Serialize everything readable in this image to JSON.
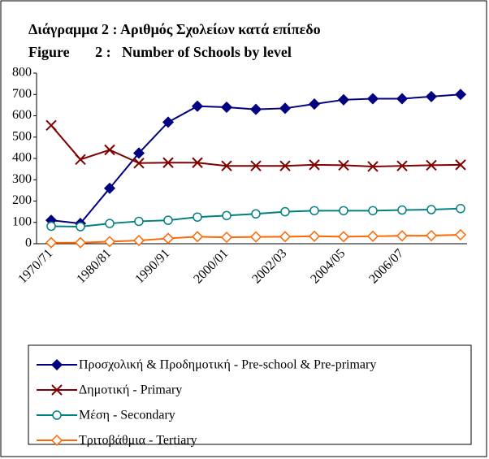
{
  "chart_data": {
    "type": "line",
    "title": "Διάγραμμα 2 :  Αριθμός Σχολείων κατά επίπεδο",
    "subtitle": "Figure       2 :   Number of Schools by level",
    "categories": [
      "1970/71",
      null,
      "1980/81",
      null,
      "1990/91",
      null,
      "2000/01",
      null,
      "2002/03",
      null,
      "2004/05",
      null,
      "2006/07",
      null,
      null
    ],
    "series": [
      {
        "name": "Προσχολική & Προδημοτική - Pre-school & Pre-primary",
        "color": "#000080",
        "marker": "diamond-filled",
        "values": [
          110,
          95,
          260,
          425,
          570,
          645,
          640,
          630,
          635,
          655,
          675,
          680,
          680,
          690,
          700
        ]
      },
      {
        "name": "Δημοτική - Primary",
        "color": "#800000",
        "marker": "x",
        "values": [
          555,
          395,
          440,
          378,
          380,
          380,
          365,
          365,
          365,
          370,
          368,
          362,
          365,
          368,
          370
        ]
      },
      {
        "name": "Μέση - Secondary",
        "color": "#008080",
        "marker": "circle-open",
        "values": [
          82,
          80,
          95,
          105,
          110,
          125,
          132,
          140,
          150,
          155,
          155,
          155,
          158,
          160,
          165
        ]
      },
      {
        "name": "Τριτοβάθμια - Tertiary",
        "color": "#ff6600",
        "marker": "diamond-open",
        "values": [
          5,
          5,
          10,
          15,
          25,
          33,
          30,
          32,
          33,
          35,
          33,
          35,
          37,
          38,
          42
        ]
      }
    ],
    "ylim": [
      0,
      800
    ],
    "yticks": [
      0,
      100,
      200,
      300,
      400,
      500,
      600,
      700,
      800
    ],
    "grid": false,
    "legend": "bottom"
  }
}
